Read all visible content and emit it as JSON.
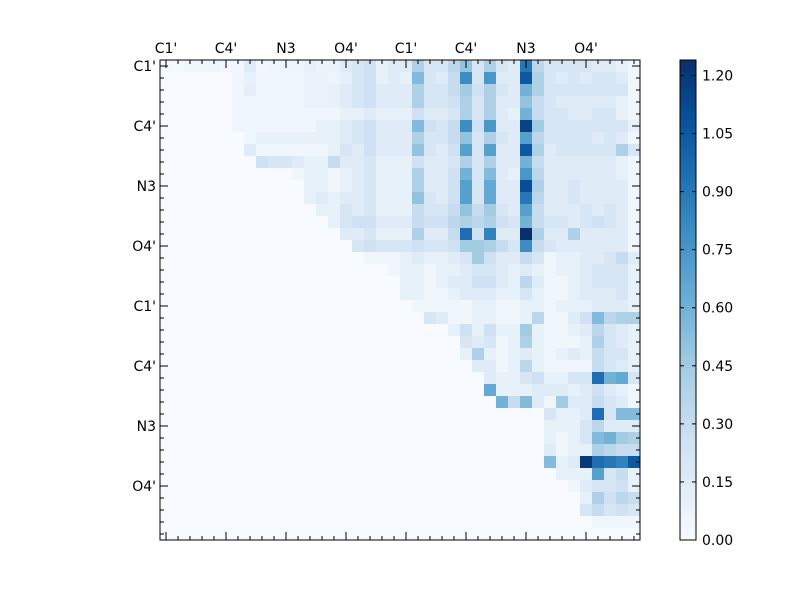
{
  "chart_data": {
    "type": "heatmap",
    "title": "",
    "xlabel": "",
    "ylabel": "",
    "n_cells": 40,
    "x_tick_labels": [
      "C1'",
      "C4'",
      "N3",
      "O4'",
      "C1'",
      "C4'",
      "N3",
      "O4'"
    ],
    "y_tick_labels": [
      "C1'",
      "C4'",
      "N3",
      "O4'",
      "C1'",
      "C4'",
      "N3",
      "O4'"
    ],
    "major_tick_cells": [
      0,
      5,
      10,
      15,
      20,
      25,
      30,
      35
    ],
    "colorbar": {
      "min": 0.0,
      "max": 1.24,
      "tick_values": [
        0.0,
        0.15,
        0.3,
        0.45,
        0.6,
        0.75,
        0.9,
        1.05,
        1.2
      ],
      "tick_labels": [
        "0.00",
        "0.15",
        "0.30",
        "0.45",
        "0.60",
        "0.75",
        "0.90",
        "1.05",
        "1.20"
      ],
      "colormap": "Blues"
    },
    "rows": [
      "0:0.03,1:0.02,2:0.05,3:0.05,4:0.06,5:0.04,6:0.04,7:0.16,8:0.04,9:0.05,10:0.06,11:0.06,12:0.10,13:0.07,14:0.08,15:0.15,16:0.20,17:0.25,18:0.10,19:0.15,20:0.15,21:0.40,22:0.20,23:0.20,24:0.35,25:0.50,26:0.20,27:0.40,28:0.20,29:0.15,30:0.90,31:0.35,32:0.20,33:0.20,34:0.20,35:0.20,36:0.15,37:0.15,38:0.10,39:0.05",
      "6:0.05,7:0.10,8:0.05,9:0.05,10:0.05,11:0.05,12:0.08,13:0.08,14:0.06,15:0.12,16:0.20,17:0.25,18:0.10,19:0.15,20:0.10,21:0.55,22:0.20,23:0.15,24:0.30,25:0.80,26:0.20,27:0.75,28:0.15,29:0.15,30:1.05,31:0.40,32:0.20,33:0.15,34:0.20,35:0.15,36:0.20,37:0.20,38:0.15,39:0.05",
      "6:0.05,7:0.12,8:0.05,9:0.05,10:0.05,11:0.05,12:0.08,13:0.08,14:0.10,15:0.15,16:0.20,17:0.25,18:0.15,19:0.15,20:0.15,21:0.40,22:0.20,23:0.20,24:0.30,25:0.45,26:0.25,27:0.40,28:0.20,29:0.15,30:0.60,31:0.40,32:0.20,33:0.20,34:0.20,35:0.20,36:0.20,37:0.20,38:0.20,39:0.05",
      "6:0.05,7:0.05,8:0.05,9:0.05,10:0.05,11:0.05,12:0.08,13:0.08,14:0.10,15:0.15,16:0.20,17:0.25,18:0.15,19:0.15,20:0.15,21:0.40,22:0.20,23:0.20,24:0.25,25:0.40,26:0.20,27:0.40,28:0.15,29:0.15,30:0.50,31:0.30,32:0.20,33:0.15,34:0.15,35:0.15,36:0.15,37:0.15,38:0.10,39:0.05",
      "6:0.05,7:0.05,8:0.05,9:0.05,10:0.05,11:0.05,12:0.05,13:0.05,14:0.05,15:0.10,16:0.10,17:0.15,18:0.10,19:0.10,20:0.10,21:0.25,22:0.15,23:0.15,24:0.20,25:0.40,26:0.20,27:0.40,28:0.15,29:0.10,30:0.60,31:0.30,32:0.20,33:0.20,34:0.15,35:0.15,36:0.20,37:0.20,38:0.10,39:0.05",
      "6:0.05,7:0.05,8:0.05,9:0.05,10:0.05,11:0.05,12:0.05,13:0.10,14:0.10,15:0.15,16:0.20,17:0.25,18:0.15,19:0.15,20:0.15,21:0.55,22:0.25,23:0.20,24:0.30,25:0.80,26:0.25,27:0.75,28:0.15,29:0.15,30:1.15,31:0.45,32:0.20,33:0.20,34:0.20,35:0.20,36:0.20,37:0.20,38:0.20,39:0.10",
      "7:0.05,8:0.10,9:0.10,10:0.10,11:0.10,12:0.10,13:0.10,14:0.10,15:0.15,16:0.20,17:0.25,18:0.15,19:0.15,20:0.15,21:0.40,22:0.20,23:0.20,24:0.30,25:0.50,26:0.20,27:0.40,28:0.20,29:0.15,30:0.70,31:0.35,32:0.20,33:0.20,34:0.20,35:0.20,36:0.15,37:0.20,38:0.15,39:0.05",
      "7:0.15,8:0.05,9:0.05,10:0.05,11:0.05,12:0.05,13:0.05,14:0.10,15:0.20,16:0.15,17:0.25,18:0.15,19:0.15,20:0.15,21:0.50,22:0.20,23:0.15,24:0.25,25:0.70,26:0.20,27:0.70,28:0.15,29:0.15,30:1.05,31:0.40,32:0.15,33:0.20,34:0.20,35:0.20,36:0.20,37:0.20,38:0.40,39:0.20",
      "8:0.25,9:0.20,10:0.20,11:0.15,12:0.10,13:0.10,14:0.30,15:0.15,16:0.15,17:0.20,18:0.10,19:0.10,20:0.10,21:0.25,22:0.15,23:0.15,24:0.20,25:0.40,26:0.20,27:0.40,28:0.15,29:0.15,30:0.60,31:0.30,32:0.15,33:0.15,34:0.15,35:0.15,36:0.15,37:0.15,38:0.10,39:0.05",
      "11:0.05,12:0.10,13:0.10,14:0.05,15:0.10,16:0.15,17:0.20,18:0.10,19:0.10,20:0.10,21:0.40,22:0.15,23:0.15,24:0.25,25:0.60,26:0.20,27:0.55,28:0.15,29:0.10,30:0.75,31:0.35,32:0.15,33:0.15,34:0.15,35:0.15,36:0.15,37:0.15,38:0.10,39:0.05",
      "12:0.10,13:0.10,14:0.05,15:0.10,16:0.15,17:0.20,18:0.10,19:0.10,20:0.10,21:0.40,22:0.15,23:0.15,24:0.25,25:0.70,26:0.20,27:0.65,28:0.15,29:0.15,30:1.10,31:0.40,32:0.15,33:0.15,34:0.20,35:0.15,36:0.15,37:0.15,38:0.15,39:0.05",
      "12:0.10,13:0.15,14:0.10,15:0.15,16:0.15,17:0.20,18:0.10,19:0.10,20:0.10,21:0.50,22:0.20,23:0.15,24:0.25,25:0.70,26:0.20,27:0.65,28:0.15,29:0.15,30:0.90,31:0.35,32:0.15,33:0.15,34:0.20,35:0.15,36:0.15,37:0.15,38:0.15,39:0.05",
      "13:0.10,14:0.10,15:0.20,16:0.15,17:0.20,18:0.10,19:0.10,20:0.10,21:0.30,22:0.20,23:0.20,24:0.30,25:0.50,26:0.30,27:0.45,28:0.20,29:0.15,30:0.70,31:0.30,32:0.15,33:0.15,34:0.15,35:0.20,36:0.15,37:0.20,38:0.15,39:0.05",
      "14:0.10,15:0.20,16:0.25,17:0.25,18:0.15,19:0.15,20:0.15,21:0.30,22:0.25,23:0.25,24:0.35,25:0.40,26:0.35,27:0.40,28:0.25,29:0.20,30:0.60,31:0.30,32:0.20,33:0.20,34:0.15,35:0.20,36:0.25,37:0.20,38:0.15,39:0.05",
      "15:0.15,16:0.15,17:0.20,18:0.10,19:0.10,20:0.10,21:0.40,22:0.15,23:0.15,24:0.30,25:0.95,26:0.25,27:0.85,28:0.15,29:0.15,30:1.24,31:0.40,32:0.15,33:0.15,34:0.40,35:0.15,36:0.15,37:0.15,38:0.15,39:0.05",
      "16:0.20,17:0.25,18:0.20,19:0.20,20:0.20,21:0.25,22:0.20,23:0.20,24:0.25,25:0.45,26:0.45,27:0.40,28:0.30,29:0.20,30:0.80,31:0.30,32:0.20,33:0.15,34:0.15,35:0.15,36:0.15,37:0.15,38:0.15,39:0.05",
      "17:0.05,18:0.05,19:0.05,20:0.10,21:0.15,22:0.10,23:0.10,24:0.15,25:0.20,26:0.45,27:0.25,28:0.15,29:0.15,30:0.30,31:0.20,32:0.05,33:0.10,34:0.10,35:0.15,36:0.15,37:0.20,38:0.30,39:0.15",
      "19:0.05,20:0.10,21:0.10,22:0.05,23:0.10,24:0.10,25:0.15,26:0.20,27:0.20,28:0.15,29:0.10,30:0.15,31:0.10,32:0.05,33:0.10,34:0.10,35:0.15,36:0.20,37:0.20,38:0.20,39:0.10",
      "20:0.10,21:0.10,22:0.05,23:0.10,24:0.15,25:0.15,26:0.25,27:0.25,28:0.15,29:0.10,30:0.35,31:0.15,32:0.05,33:0.05,34:0.10,35:0.15,36:0.20,37:0.20,38:0.20,39:0.10",
      "20:0.10,21:0.10,22:0.05,23:0.05,24:0.10,25:0.15,26:0.15,27:0.15,28:0.10,29:0.10,30:0.20,31:0.10,32:0.05,33:0.05,34:0.10,35:0.15,36:0.15,37:0.15,38:0.20,39:0.10",
      "21:0.05,22:0.05,23:0.05,24:0.05,25:0.05,26:0.10,27:0.10,28:0.05,29:0.05,30:0.10,31:0.10,32:0.05,33:0.10,34:0.10,35:0.10,36:0.15,37:0.15,38:0.15,39:0.10",
      "22:0.20,23:0.15,24:0.05,25:0.05,26:0.10,27:0.10,28:0.05,29:0.05,30:0.10,31:0.35,32:0.05,33:0.05,34:0.15,35:0.25,36:0.55,37:0.35,38:0.40,39:0.40",
      "24:0.10,25:0.25,26:0.10,27:0.25,28:0.10,29:0.10,30:0.45,31:0.10,32:0.05,33:0.05,34:0.10,35:0.15,36:0.35,37:0.20,38:0.15,39:0.10",
      "25:0.20,26:0.15,27:0.20,28:0.05,29:0.10,30:0.40,31:0.10,32:0.05,33:0.05,34:0.05,35:0.10,36:0.40,37:0.20,38:0.15,39:0.10",
      "25:0.10,26:0.40,27:0.10,28:0.05,29:0.10,30:0.15,31:0.10,32:0.05,33:0.10,34:0.15,35:0.10,36:0.30,37:0.20,38:0.20,39:0.10",
      "26:0.15,27:0.15,28:0.05,29:0.10,30:0.35,31:0.10,32:0.05,33:0.05,34:0.05,35:0.05,36:0.30,37:0.20,38:0.15,39:0.10",
      "27:0.15,28:0.10,29:0.10,30:0.20,31:0.25,32:0.10,33:0.10,34:0.20,35:0.20,36:0.95,37:0.60,38:0.65,39:0.20",
      "27:0.65,28:0.10,29:0.10,30:0.10,31:0.15,32:0.15,33:0.15,34:0.10,35:0.15,36:0.25,37:0.15,38:0.10,39:0.05",
      "28:0.60,29:0.30,30:0.55,31:0.15,32:0.05,33:0.45,34:0.15,35:0.15,36:0.30,37:0.20,38:0.15,39:0.05",
      "32:0.20,33:0.10,34:0.10,35:0.15,36:0.95,37:0.20,38:0.55,39:0.55",
      "32:0.10,33:0.10,34:0.10,35:0.20,36:0.35,37:0.15,38:0.15,39:0.15",
      "32:0.10,33:0.05,34:0.10,35:0.20,36:0.55,37:0.60,38:0.45,39:0.40",
      "32:0.15,33:0.05,34:0.10,35:0.10,36:0.40,37:0.35,38:0.30,39:0.30",
      "32:0.55,33:0.10,34:0.15,35:1.20,36:0.95,37:0.90,38:0.85,39:1.05",
      "33:0.10,34:0.10,35:0.10,36:0.70,37:0.20,38:0.30,39:0.10",
      "34:0.05,35:0.15,36:0.20,37:0.20,38:0.25,39:0.10",
      "35:0.10,36:0.40,37:0.25,38:0.35,39:0.30",
      "35:0.20,36:0.30,37:0.20,38:0.25,39:0.20",
      "36:0.05,37:0.05,38:0.05,39:0.05",
      ""
    ]
  }
}
